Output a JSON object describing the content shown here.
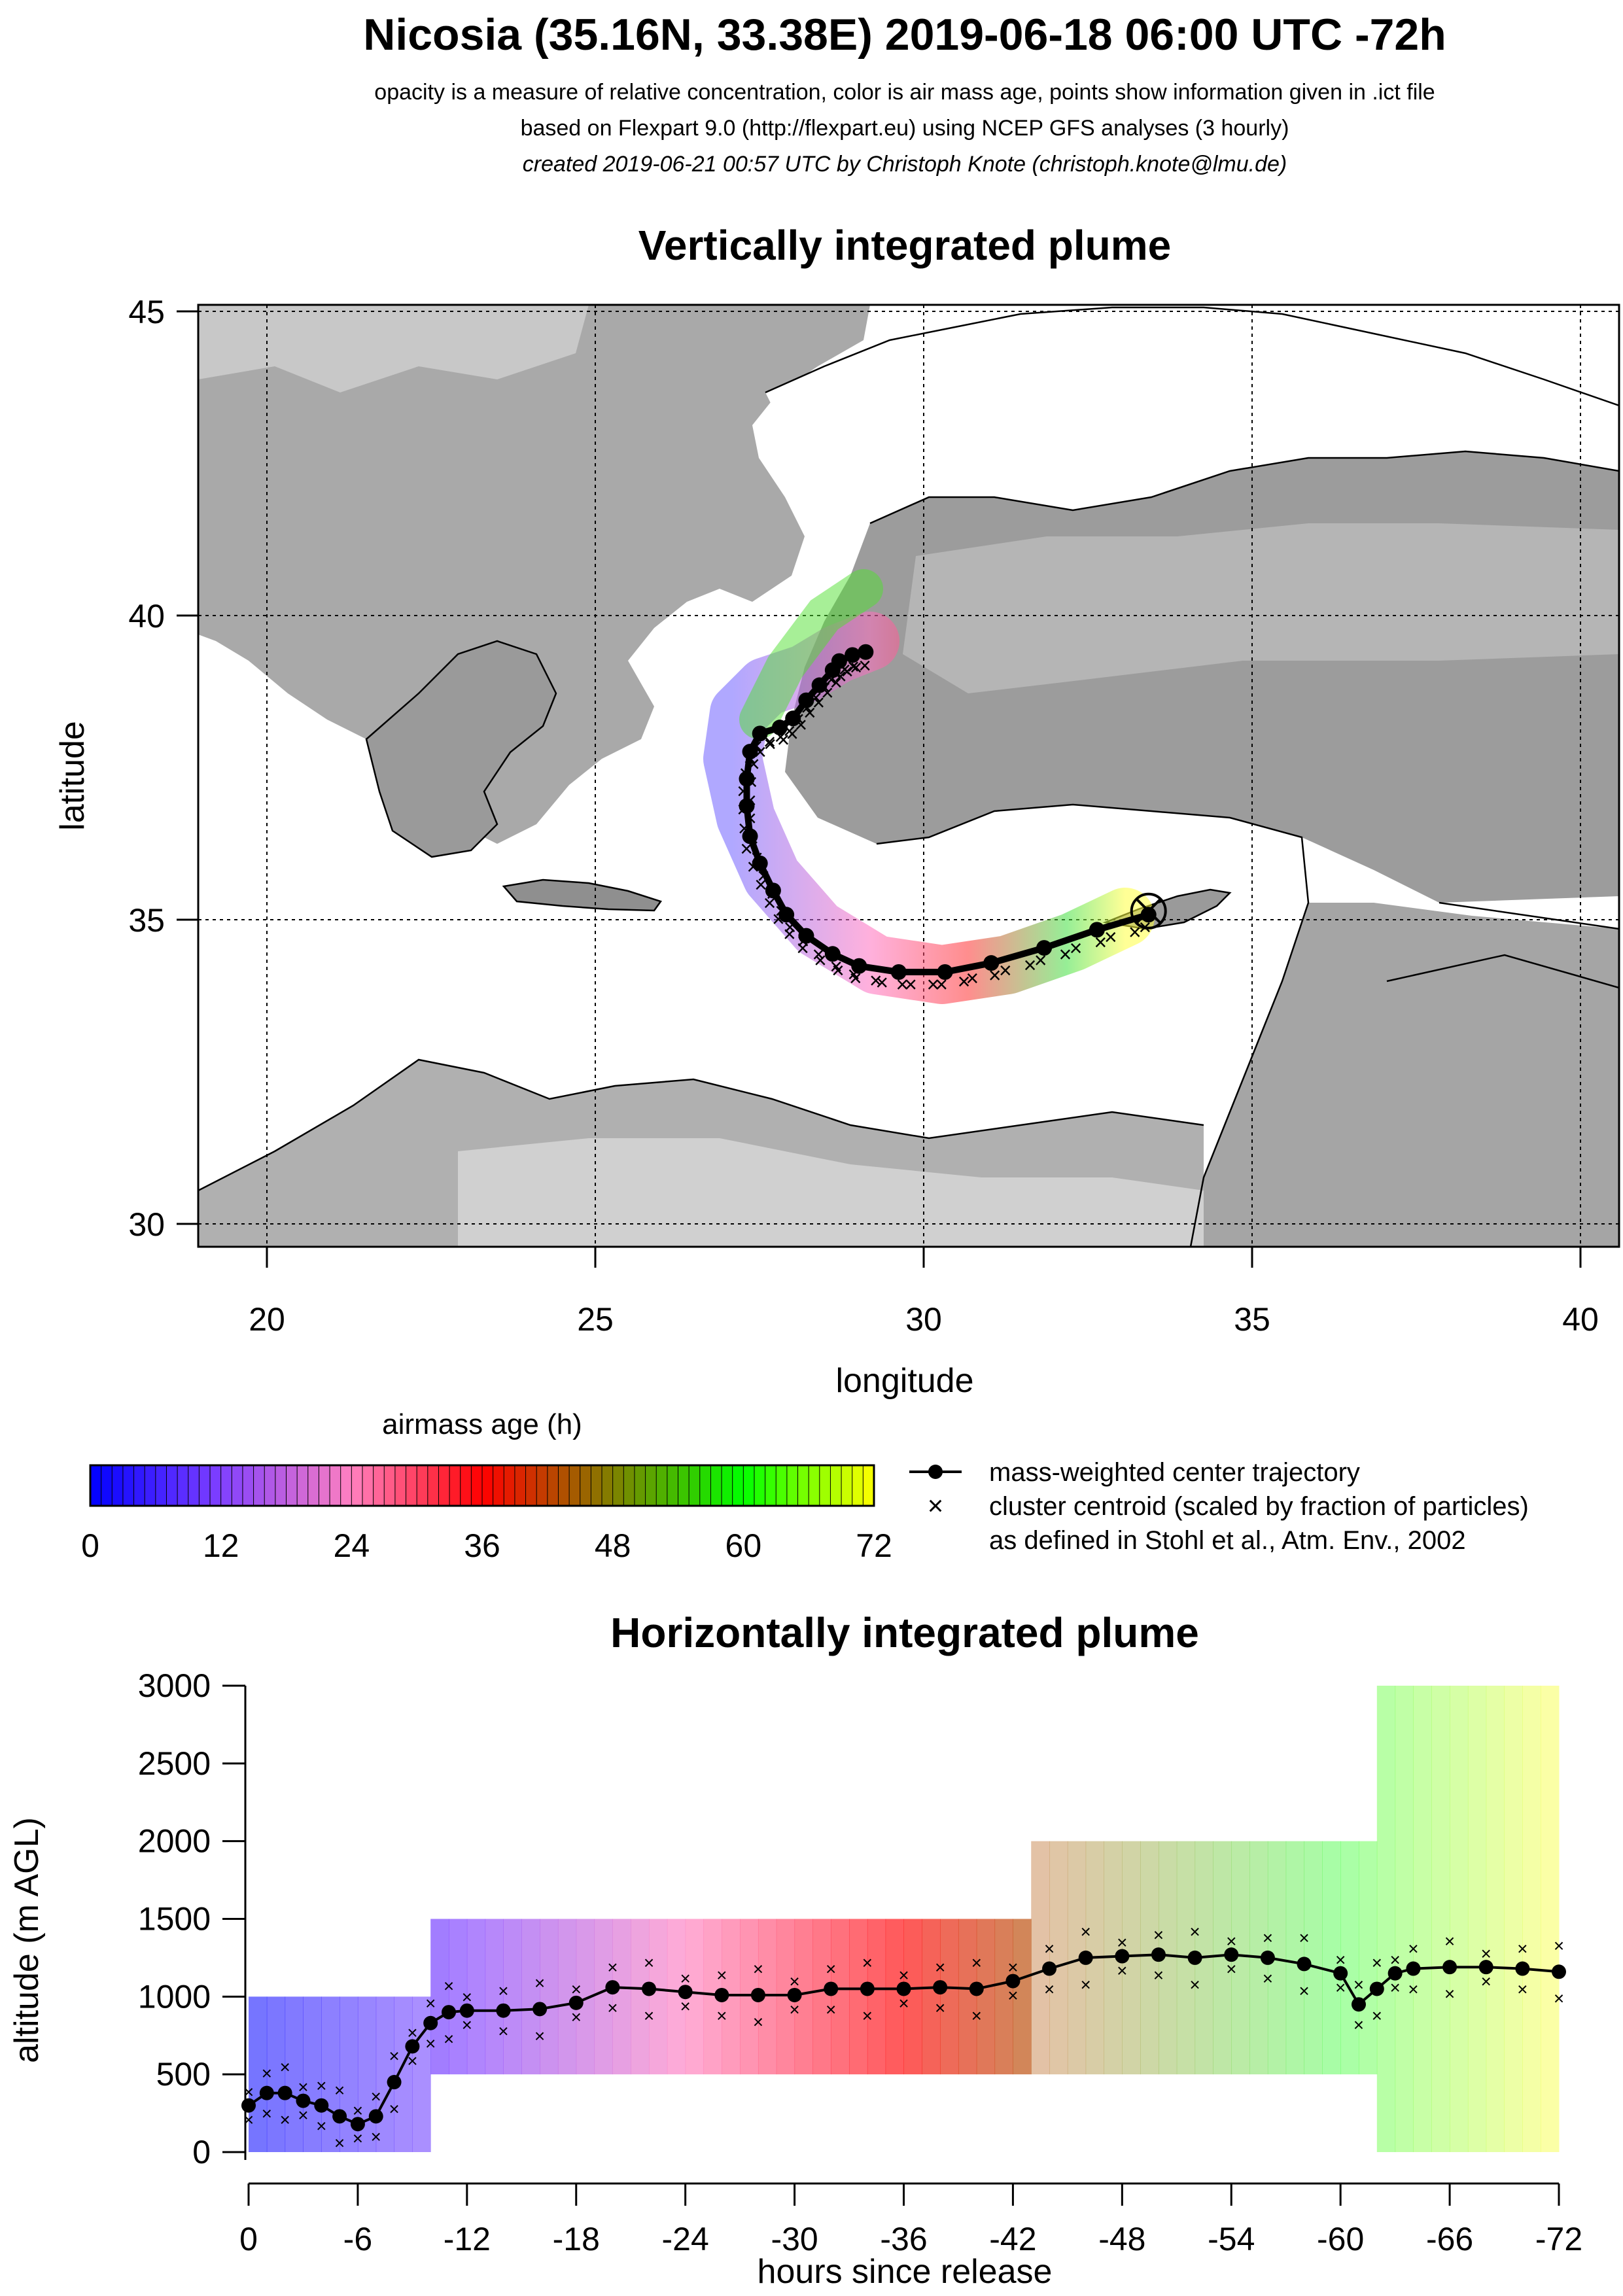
{
  "header": {
    "title": "Nicosia (35.16N, 33.38E) 2019-06-18 06:00 UTC -72h",
    "line1": "opacity is a measure of relative concentration, color is air mass age, points show information given in .ict file",
    "line2": "based on Flexpart 9.0 (http://flexpart.eu) using NCEP GFS analyses (3 hourly)",
    "line3": "created 2019-06-21 00:57 UTC by Christoph Knote (christoph.knote@lmu.de)"
  },
  "colors": {
    "age0": "#0000ff",
    "age24": "#ff80c0",
    "age36": "#ff0000",
    "age48": "#808000",
    "age60": "#00ff00",
    "age72": "#ffff00"
  },
  "legend": {
    "colorbar_title": "airmass age (h)",
    "colorbar_ticks": [
      "0",
      "12",
      "24",
      "36",
      "48",
      "60",
      "72"
    ],
    "line_entry": "mass-weighted center trajectory",
    "cross_entry": "cluster centroid (scaled by fraction of particles)",
    "cross_entry_2": "as defined in Stohl et al., Atm. Env., 2002"
  },
  "chart_data": [
    {
      "type": "scatter",
      "title": "Vertically integrated plume",
      "xlabel": "longitude",
      "ylabel": "latitude",
      "xlim": [
        19,
        40.5
      ],
      "ylim": [
        29.6,
        45.2
      ],
      "xticks": [
        "20",
        "25",
        "30",
        "35",
        "40"
      ],
      "yticks": [
        "30",
        "35",
        "40",
        "45"
      ],
      "grid": true,
      "release_site": {
        "lon": 33.38,
        "lat": 35.16
      },
      "center_trajectory": {
        "age_h": [
          0,
          3,
          6,
          9,
          12,
          15,
          18,
          21,
          24,
          27,
          30,
          33,
          36,
          39,
          42,
          45,
          48,
          51,
          54,
          57,
          60,
          63,
          66,
          69,
          72
        ],
        "lon": [
          33.38,
          32.6,
          31.8,
          31.0,
          30.3,
          29.6,
          29.0,
          28.6,
          28.2,
          27.9,
          27.7,
          27.5,
          27.35,
          27.3,
          27.3,
          27.35,
          27.5,
          27.8,
          28.0,
          28.2,
          28.4,
          28.6,
          28.7,
          28.9,
          29.1
        ],
        "lat": [
          35.1,
          34.85,
          34.55,
          34.3,
          34.15,
          34.15,
          34.25,
          34.45,
          34.75,
          35.1,
          35.5,
          35.95,
          36.4,
          36.9,
          37.35,
          37.8,
          38.1,
          38.2,
          38.35,
          38.65,
          38.9,
          39.15,
          39.3,
          39.4,
          39.45
        ]
      }
    },
    {
      "type": "scatter",
      "title": "Horizontally integrated plume",
      "xlabel": "hours since release",
      "ylabel": "altitude (m AGL)",
      "xlim": [
        0,
        -72
      ],
      "ylim": [
        0,
        3000
      ],
      "xticks": [
        "0",
        "-6",
        "-12",
        "-18",
        "-24",
        "-30",
        "-36",
        "-42",
        "-48",
        "-54",
        "-60",
        "-66",
        "-72"
      ],
      "yticks": [
        "0",
        "500",
        "1000",
        "1500",
        "2000",
        "2500",
        "3000"
      ],
      "center_trajectory": {
        "hours": [
          0,
          -1,
          -2,
          -3,
          -4,
          -5,
          -6,
          -7,
          -8,
          -9,
          -10,
          -11,
          -12,
          -14,
          -16,
          -18,
          -20,
          -22,
          -24,
          -26,
          -28,
          -30,
          -32,
          -34,
          -36,
          -38,
          -40,
          -42,
          -44,
          -46,
          -48,
          -50,
          -52,
          -54,
          -56,
          -58,
          -60,
          -61,
          -62,
          -63,
          -64,
          -66,
          -68,
          -70,
          -72
        ],
        "altitude_m": [
          300,
          380,
          380,
          330,
          300,
          230,
          180,
          230,
          450,
          680,
          830,
          900,
          910,
          910,
          920,
          960,
          1060,
          1050,
          1030,
          1010,
          1010,
          1010,
          1050,
          1050,
          1050,
          1060,
          1050,
          1100,
          1180,
          1250,
          1260,
          1270,
          1250,
          1270,
          1250,
          1210,
          1150,
          950,
          1050,
          1150,
          1180,
          1190,
          1190,
          1180,
          1160
        ]
      }
    }
  ]
}
